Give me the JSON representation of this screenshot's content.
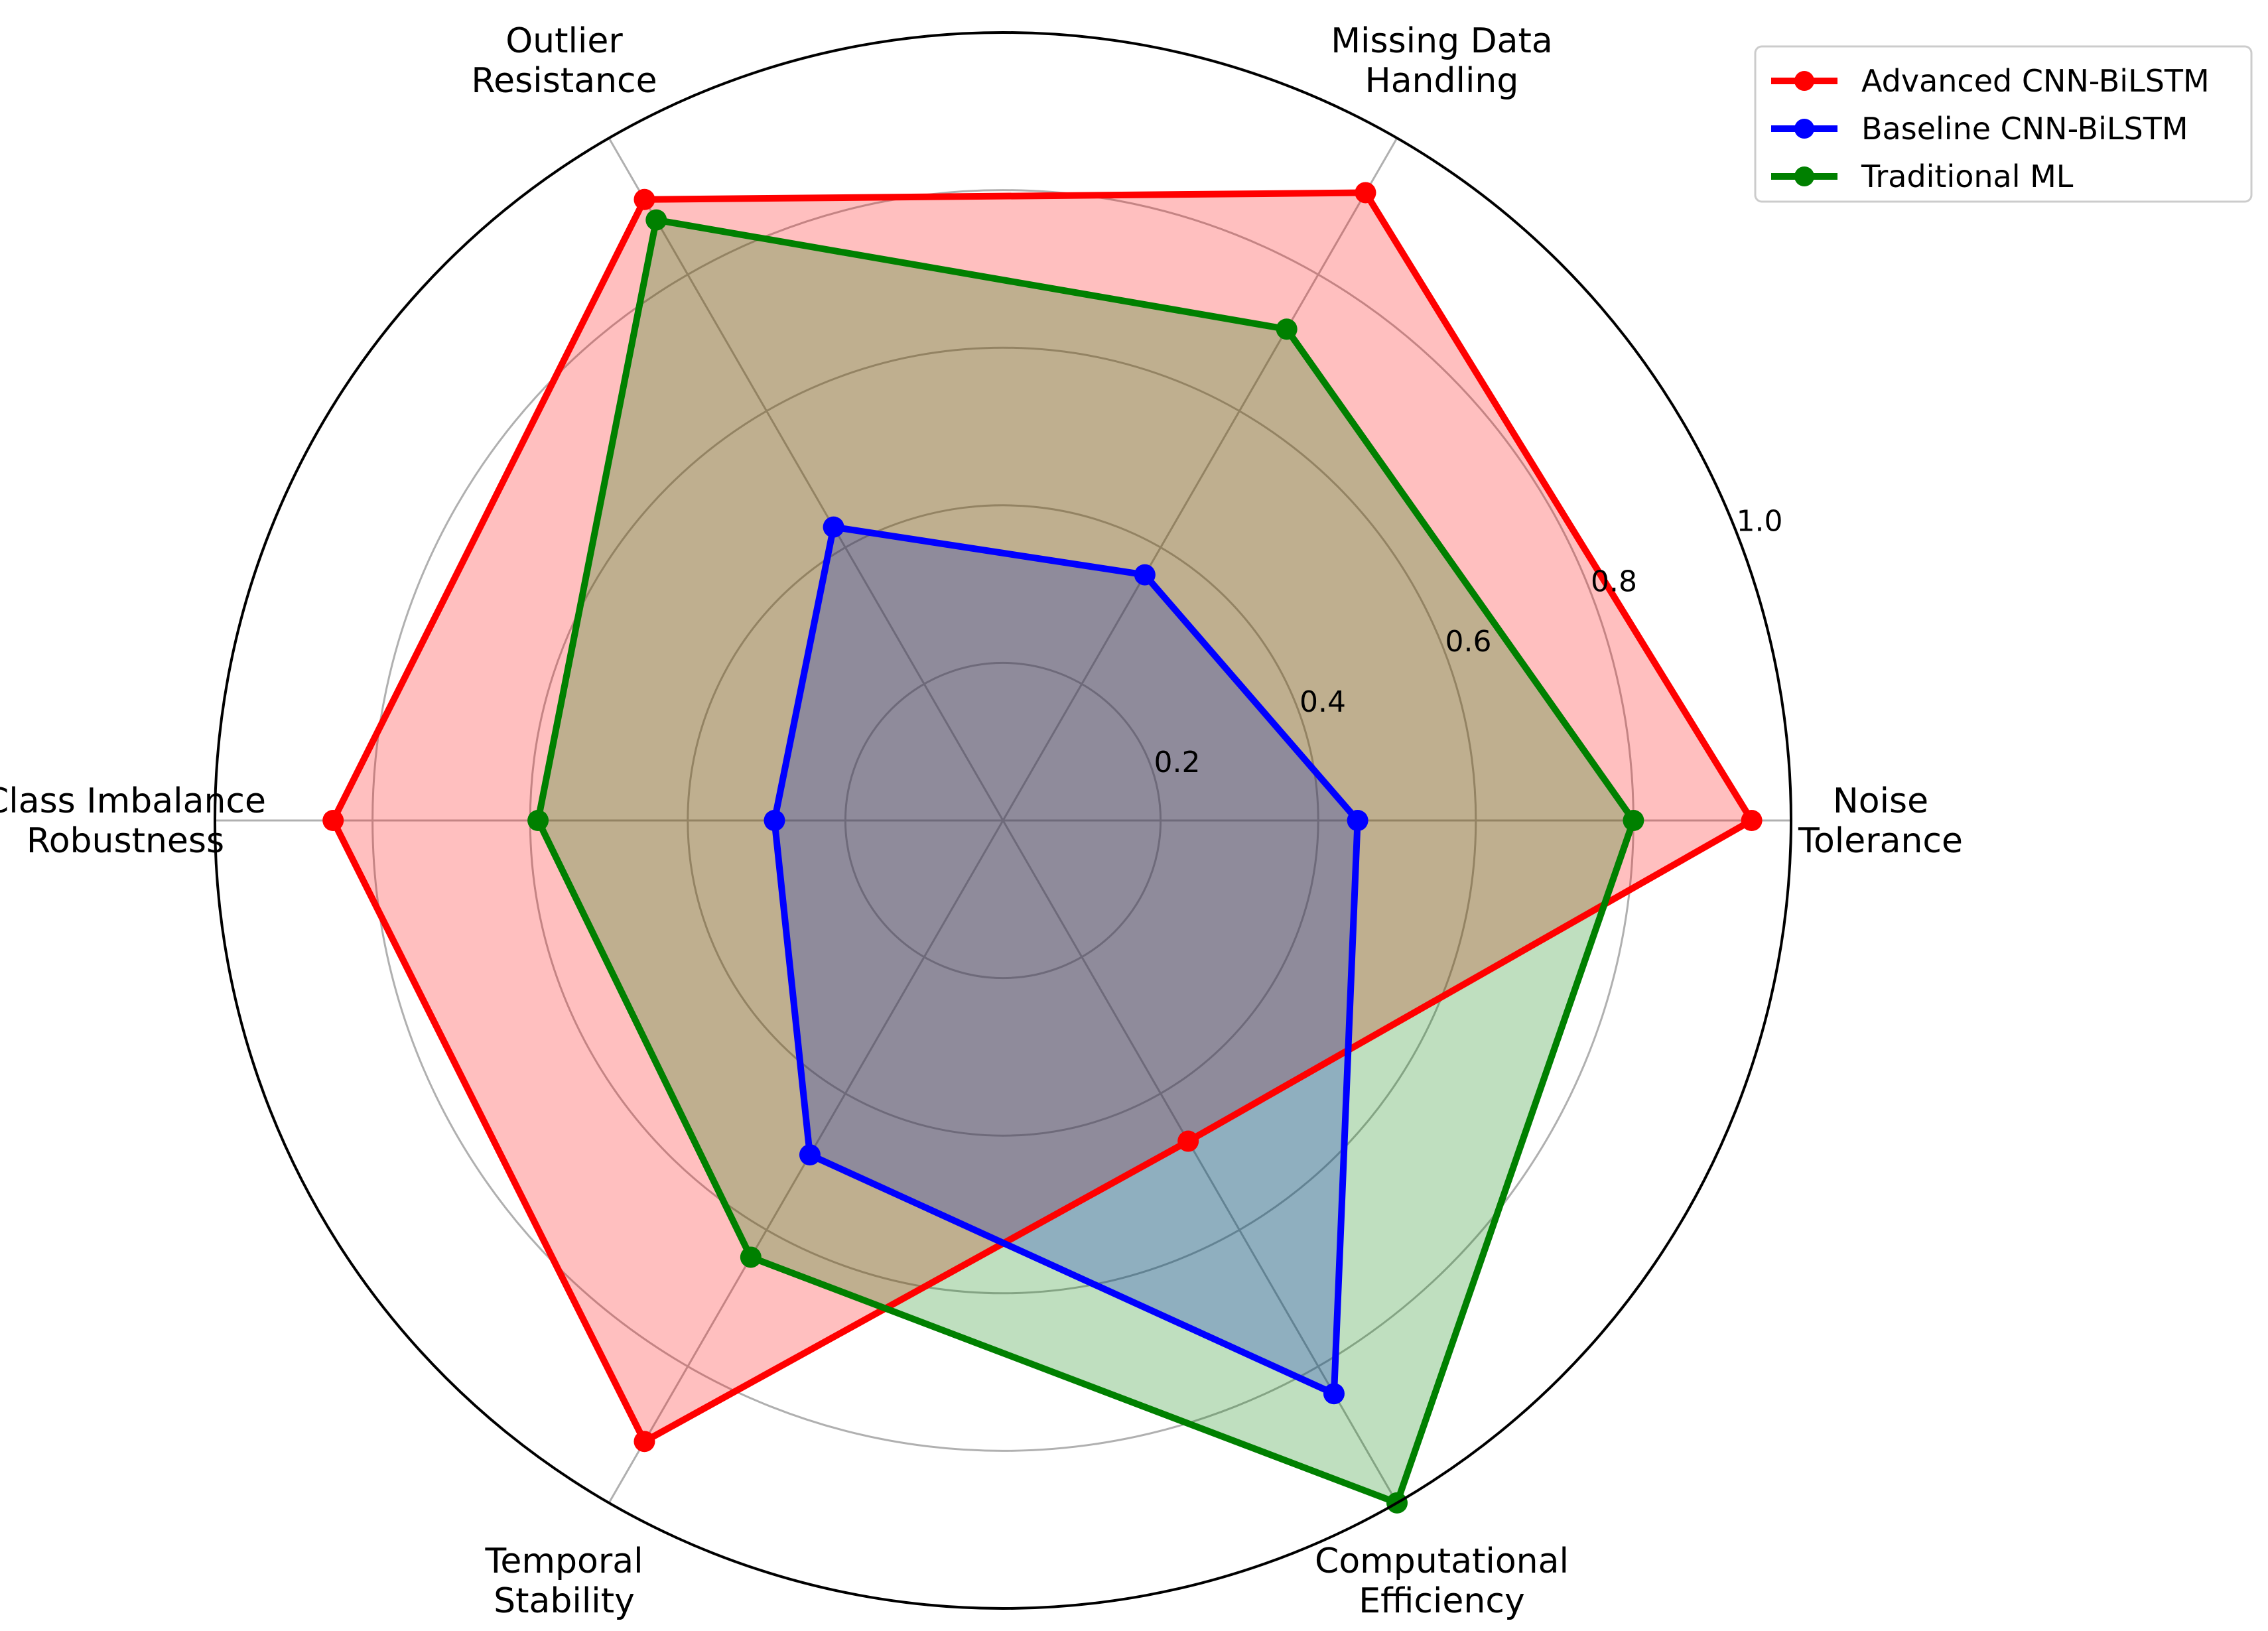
{
  "chart_data": {
    "type": "radar",
    "axes": [
      [
        "Noise",
        "Tolerance"
      ],
      [
        "Missing Data",
        "Handling"
      ],
      [
        "Outlier",
        "Resistance"
      ],
      [
        "Class Imbalance",
        "Robustness"
      ],
      [
        "Temporal",
        "Stability"
      ],
      [
        "Computational",
        "Efficiency"
      ]
    ],
    "rlim": [
      0,
      1.0
    ],
    "rticks": [
      "0.2",
      "0.4",
      "0.6",
      "0.8",
      "1.0"
    ],
    "rtick_values": [
      0.2,
      0.4,
      0.6,
      0.8,
      1.0
    ],
    "grid": true,
    "legend_position": "top-right",
    "series": [
      {
        "name": "Advanced CNN-BiLSTM",
        "values": [
          0.95,
          0.92,
          0.91,
          0.85,
          0.91,
          0.47
        ],
        "color": "#ff0000",
        "fill": "#ff0000",
        "fill_opacity": 0.25
      },
      {
        "name": "Baseline CNN-BiLSTM",
        "values": [
          0.45,
          0.36,
          0.43,
          0.29,
          0.49,
          0.84
        ],
        "color": "#0000ff",
        "fill": "#0000ff",
        "fill_opacity": 0.25
      },
      {
        "name": "Traditional ML",
        "values": [
          0.8,
          0.72,
          0.88,
          0.59,
          0.64,
          1.0
        ],
        "color": "#008000",
        "fill": "#008000",
        "fill_opacity": 0.25
      }
    ]
  }
}
